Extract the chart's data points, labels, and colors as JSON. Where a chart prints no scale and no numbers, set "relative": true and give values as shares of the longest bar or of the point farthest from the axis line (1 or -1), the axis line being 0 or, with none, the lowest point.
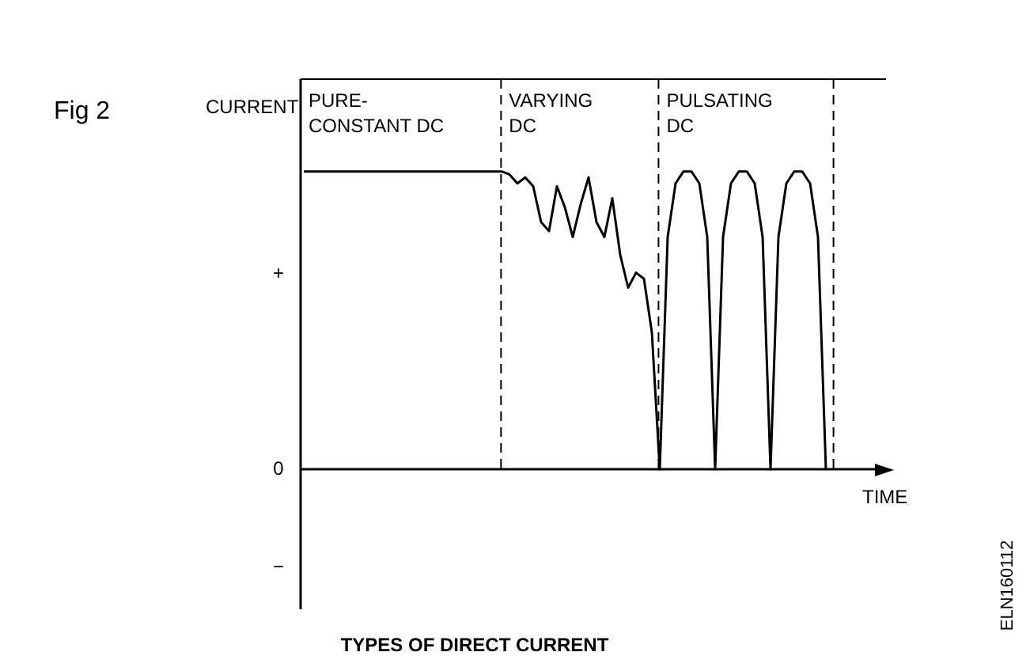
{
  "chart_data": {
    "type": "line",
    "title": "Fig 2",
    "ylabel": "CURRENT",
    "xlabel": "TIME",
    "relative": true,
    "categories": [
      null,
      null,
      null,
      null,
      null,
      null,
      null,
      null,
      null,
      null,
      null,
      null,
      null,
      null,
      null,
      null,
      null,
      null,
      null,
      null,
      null,
      null,
      null,
      null,
      null,
      null,
      null,
      null,
      null,
      null,
      null,
      null,
      null,
      null,
      null,
      null,
      null,
      null,
      null,
      null,
      null,
      null,
      null,
      null,
      null,
      null,
      null,
      null,
      null,
      null,
      null,
      null,
      null,
      null,
      null,
      null,
      null,
      null,
      null,
      null,
      null,
      null,
      null,
      null,
      null,
      null,
      null
    ],
    "series": [
      {
        "color": "#000000",
        "values": [
          1,
          1,
          1,
          1,
          1,
          1,
          1,
          1,
          1,
          1,
          1,
          1,
          1,
          1,
          1,
          1,
          1,
          1,
          1,
          1,
          1,
          1,
          1,
          1,
          1,
          1,
          0.99,
          0.96,
          0.98,
          0.95,
          0.83,
          0.8,
          0.95,
          0.88,
          0.78,
          0.89,
          0.98,
          0.83,
          0.78,
          0.91,
          0.72,
          0.61,
          0.66,
          0.64,
          0.46,
          0,
          0.78,
          0.96,
          1,
          1,
          0.96,
          0.78,
          0,
          0.78,
          0.96,
          1,
          1,
          0.96,
          0.78,
          0,
          0.78,
          0.96,
          1,
          1,
          0.96,
          0.78,
          0
        ]
      }
    ],
    "annotations": [
      "PURE-\nCONSTANT DC",
      "VARYING\nDC",
      "PULSATING\nDC",
      "TYPES OF DIRECT CURRENT",
      "ELN160112",
      "+",
      "0",
      "−"
    ],
    "legend": false,
    "marker": "none",
    "line_style": "solid"
  }
}
